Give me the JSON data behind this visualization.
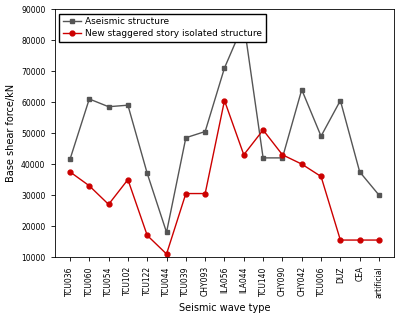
{
  "x_labels": [
    "TCU036",
    "TCU060",
    "TCU054",
    "TCU102",
    "TCU122",
    "TCU044",
    "TCU039",
    "CHY093",
    "ILA056",
    "ILA044",
    "TCU140",
    "CHY090",
    "CHY042",
    "TCU006",
    "DUZ",
    "CEA",
    "artificial"
  ],
  "aseismic": [
    41500,
    61000,
    58500,
    59000,
    37000,
    18000,
    48500,
    50500,
    71000,
    85500,
    42000,
    42000,
    64000,
    49000,
    60500,
    37500,
    30000
  ],
  "isolated": [
    37500,
    33000,
    27000,
    35000,
    17000,
    11000,
    30500,
    30500,
    60500,
    43000,
    51000,
    43000,
    40000,
    36000,
    15500,
    15500,
    15500
  ],
  "aseismic_color": "#555555",
  "isolated_color": "#cc0000",
  "aseismic_label": "Aseismic structure",
  "isolated_label": "New staggered story isolated structure",
  "ylabel": "Base shear force/kN",
  "xlabel": "Seismic wave type",
  "ylim": [
    10000,
    90000
  ],
  "yticks": [
    10000,
    20000,
    30000,
    40000,
    50000,
    60000,
    70000,
    80000,
    90000
  ],
  "marker_aseismic": "s",
  "marker_isolated": "o",
  "marker_size": 3.5,
  "line_width": 1.0,
  "label_fontsize": 7,
  "tick_fontsize": 5.5,
  "legend_fontsize": 6.5
}
